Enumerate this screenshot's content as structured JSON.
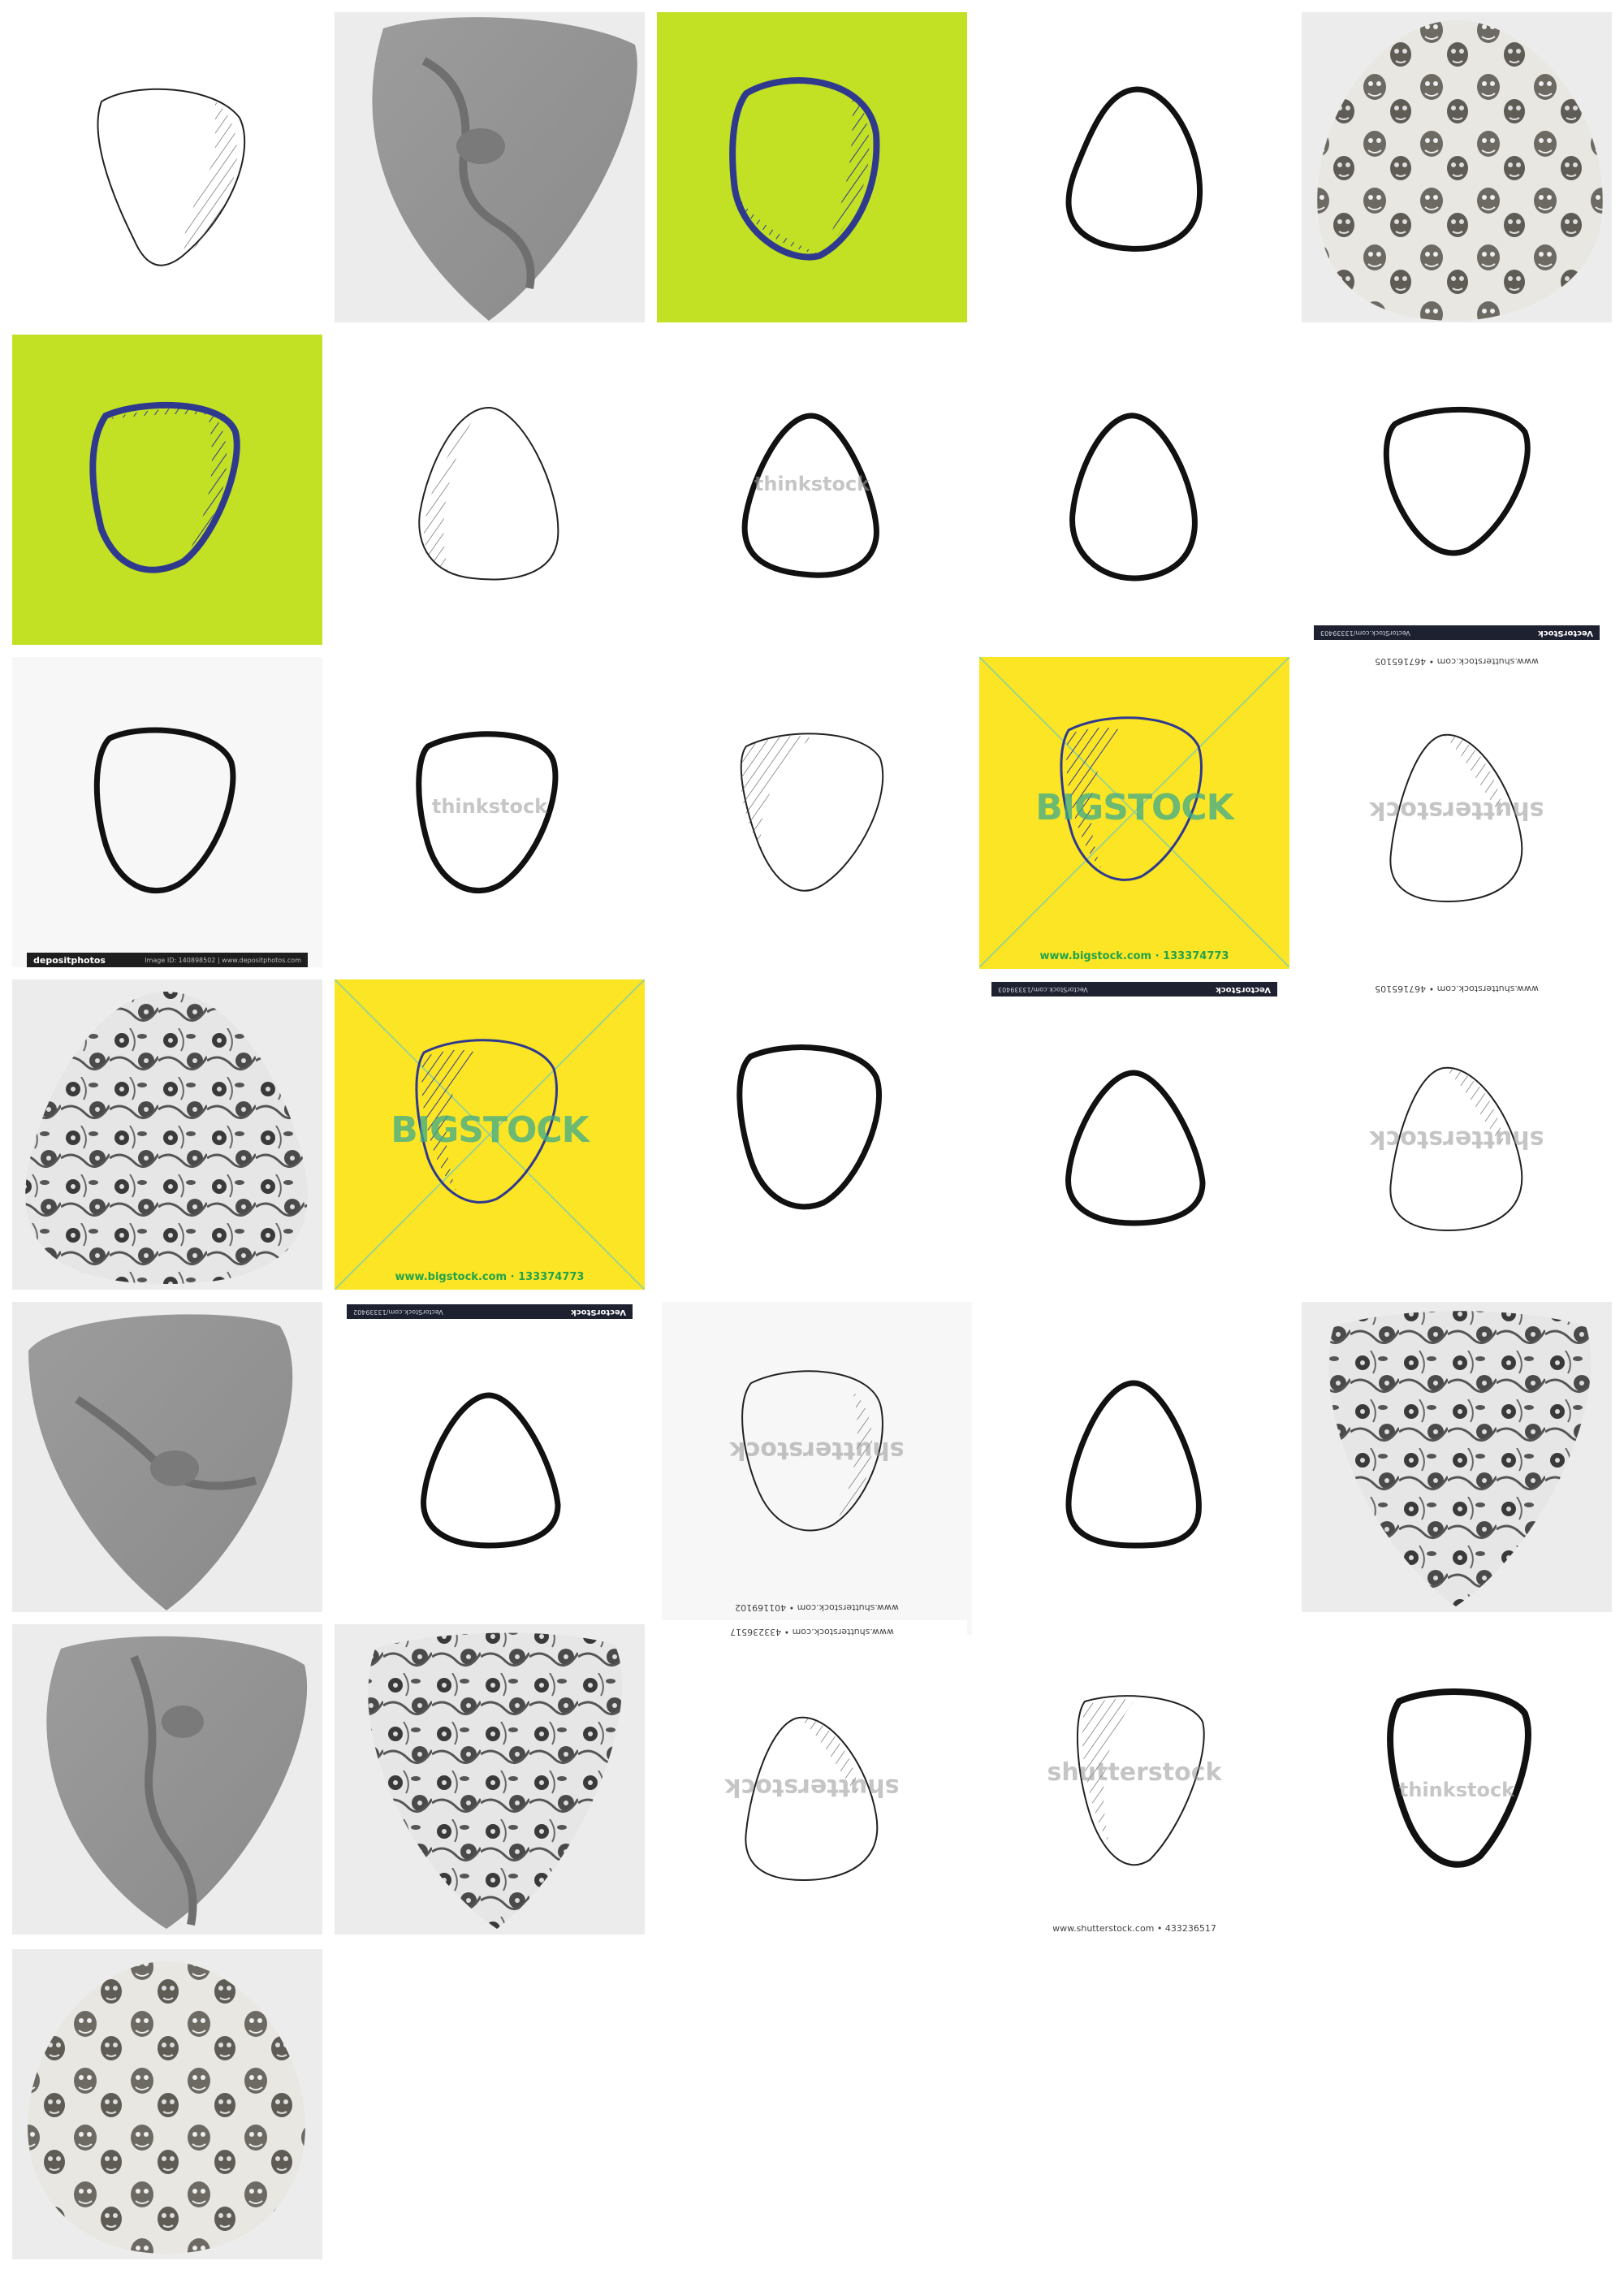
{
  "watermarks": {
    "shutterstock": "shutterstock",
    "thinkstock": "thinkstock",
    "bigstock": "BIGSTOCK",
    "vectorstock": "VectorStock",
    "depositphotos": "depositphotos"
  },
  "captions": {
    "bigstock_footer": "www.bigstock.com · 133374773",
    "shutter_1": "www.shutterstock.com • 467165105",
    "shutter_2": "www.shutterstock.com • 467165105",
    "shutter_3": "www.shutterstock.com • 401169102",
    "shutter_4": "www.shutterstock.com • 433236517",
    "shutter_5": "www.shutterstock.com • 433236517",
    "vectorstock_meta_1": "VectorStock.com/13339403",
    "vectorstock_meta_2": "VectorStock.com/13339403",
    "vectorstock_meta_3": "VectorStock.com/13339402",
    "deposit_meta": "Image ID: 140898502  |  www.depositphotos.com"
  },
  "colors": {
    "lime": "#c2e024",
    "yellow": "#fbe525",
    "outline_blue": "#2f3a8f",
    "gray_bg": "#ececec"
  },
  "icons": {
    "pick_outline": "guitar-pick-outline-icon",
    "pick_pattern": "guitar-pick-pattern-image"
  }
}
